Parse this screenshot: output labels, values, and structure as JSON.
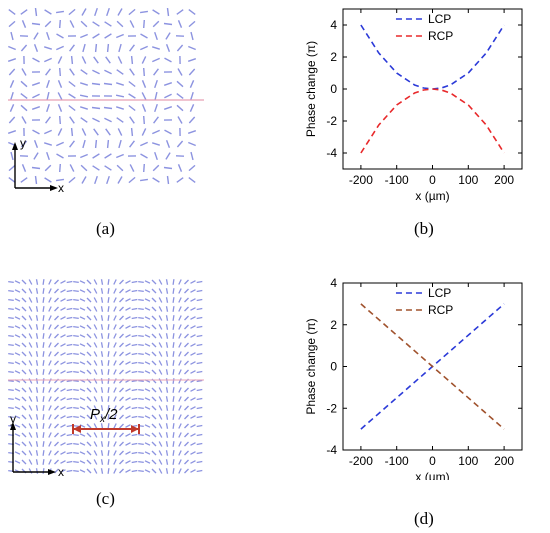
{
  "panels": {
    "a": {
      "label": "(a)",
      "axis_y": "y",
      "axis_x": "x"
    },
    "b": {
      "label": "(b)"
    },
    "c": {
      "label": "(c)",
      "axis_y": "y",
      "axis_x": "x",
      "annotation_main": "P",
      "annotation_sub": "x",
      "annotation_tail": "/2"
    },
    "d": {
      "label": "(d)"
    }
  },
  "chart_data": [
    {
      "type": "line",
      "panel": "b",
      "xlabel": "x (µm)",
      "ylabel": "Phase change (π)",
      "xlim": [
        -250,
        250
      ],
      "ylim": [
        -5,
        5
      ],
      "xticks": [
        -200,
        -100,
        0,
        100,
        200
      ],
      "xtick_labels": [
        "-200",
        "-100",
        "0",
        "100",
        "200"
      ],
      "yticks": [
        -4,
        -2,
        0,
        2,
        4
      ],
      "ytick_labels": [
        "-4",
        "-2",
        "0",
        "2",
        "4"
      ],
      "legend": "top-center",
      "grid": false,
      "series": [
        {
          "name": "LCP",
          "color": "#2b3ad8",
          "dash": "dashed",
          "x": [
            -200,
            -150,
            -100,
            -50,
            -25,
            0,
            25,
            50,
            100,
            150,
            200
          ],
          "y": [
            4.0,
            2.25,
            1.0,
            0.25,
            0.06,
            0.0,
            0.06,
            0.25,
            1.0,
            2.25,
            4.0
          ]
        },
        {
          "name": "RCP",
          "color": "#e8292b",
          "dash": "dashed",
          "x": [
            -200,
            -150,
            -100,
            -50,
            -25,
            0,
            25,
            50,
            100,
            150,
            200
          ],
          "y": [
            -4.0,
            -2.25,
            -1.0,
            -0.25,
            -0.06,
            0.0,
            -0.06,
            -0.25,
            -1.0,
            -2.25,
            -4.0
          ]
        }
      ]
    },
    {
      "type": "line",
      "panel": "d",
      "xlabel": "x (µm)",
      "ylabel": "Phase change (π)",
      "xlim": [
        -250,
        250
      ],
      "ylim": [
        -4,
        4
      ],
      "xticks": [
        -200,
        -100,
        0,
        100,
        200
      ],
      "xtick_labels": [
        "-200",
        "-100",
        "0",
        "100",
        "200"
      ],
      "yticks": [
        -4,
        -2,
        0,
        2,
        4
      ],
      "ytick_labels": [
        "-4",
        "-2",
        "0",
        "2",
        "4"
      ],
      "legend": "top-center",
      "grid": false,
      "series": [
        {
          "name": "LCP",
          "color": "#2b3ad8",
          "dash": "dashed",
          "x": [
            -200,
            200
          ],
          "y": [
            -3.0,
            3.0
          ]
        },
        {
          "name": "RCP",
          "color": "#a0522d",
          "dash": "dashed",
          "x": [
            -200,
            200
          ],
          "y": [
            3.0,
            -3.0
          ]
        }
      ]
    }
  ]
}
